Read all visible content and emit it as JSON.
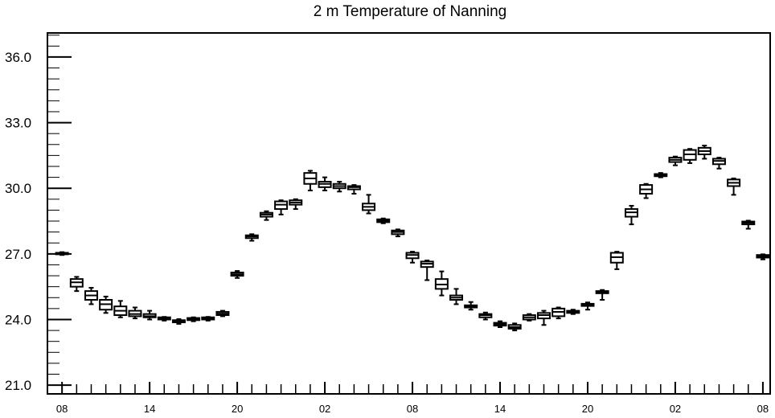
{
  "chart_data": {
    "type": "boxplot",
    "title": "2 m Temperature of Nanning",
    "xlabel": "",
    "ylabel": "",
    "ylim": [
      20.6,
      37.1
    ],
    "xlim": [
      7.0,
      56.5
    ],
    "yticks": [
      {
        "value": 21.0,
        "label": "21.0"
      },
      {
        "value": 24.0,
        "label": "24.0"
      },
      {
        "value": 27.0,
        "label": "27.0"
      },
      {
        "value": 30.0,
        "label": "30.0"
      },
      {
        "value": 33.0,
        "label": "33.0"
      },
      {
        "value": 36.0,
        "label": "36.0"
      }
    ],
    "xticks": [
      {
        "value": 8,
        "label": "08"
      },
      {
        "value": 14,
        "label": "14"
      },
      {
        "value": 20,
        "label": "20"
      },
      {
        "value": 26,
        "label": "02"
      },
      {
        "value": 32,
        "label": "08"
      },
      {
        "value": 38,
        "label": "14"
      },
      {
        "value": 44,
        "label": "20"
      },
      {
        "value": 50,
        "label": "02"
      },
      {
        "value": 56,
        "label": "08"
      }
    ],
    "grid": false,
    "legend": "none",
    "boxes": [
      {
        "x": 8,
        "min": 26.95,
        "q1": 26.98,
        "median": 27.0,
        "q3": 27.05,
        "max": 27.08
      },
      {
        "x": 9,
        "min": 25.3,
        "q1": 25.5,
        "median": 25.7,
        "q3": 25.85,
        "max": 25.95
      },
      {
        "x": 10,
        "min": 24.7,
        "q1": 24.9,
        "median": 25.1,
        "q3": 25.3,
        "max": 25.45
      },
      {
        "x": 11,
        "min": 24.3,
        "q1": 24.45,
        "median": 24.7,
        "q3": 24.9,
        "max": 25.05
      },
      {
        "x": 12,
        "min": 24.1,
        "q1": 24.2,
        "median": 24.4,
        "q3": 24.6,
        "max": 24.85
      },
      {
        "x": 13,
        "min": 24.05,
        "q1": 24.15,
        "median": 24.25,
        "q3": 24.4,
        "max": 24.55
      },
      {
        "x": 14,
        "min": 24.0,
        "q1": 24.1,
        "median": 24.15,
        "q3": 24.25,
        "max": 24.4
      },
      {
        "x": 15,
        "min": 23.95,
        "q1": 24.0,
        "median": 24.05,
        "q3": 24.1,
        "max": 24.12
      },
      {
        "x": 16,
        "min": 23.8,
        "q1": 23.87,
        "median": 23.92,
        "q3": 23.97,
        "max": 24.02
      },
      {
        "x": 17,
        "min": 23.92,
        "q1": 23.97,
        "median": 24.02,
        "q3": 24.07,
        "max": 24.1
      },
      {
        "x": 18,
        "min": 23.95,
        "q1": 24.0,
        "median": 24.05,
        "q3": 24.1,
        "max": 24.12
      },
      {
        "x": 19,
        "min": 24.15,
        "q1": 24.2,
        "median": 24.27,
        "q3": 24.35,
        "max": 24.4
      },
      {
        "x": 20,
        "min": 25.9,
        "q1": 26.0,
        "median": 26.07,
        "q3": 26.15,
        "max": 26.22
      },
      {
        "x": 21,
        "min": 27.6,
        "q1": 27.72,
        "median": 27.8,
        "q3": 27.85,
        "max": 27.9
      },
      {
        "x": 22,
        "min": 28.55,
        "q1": 28.7,
        "median": 28.8,
        "q3": 28.88,
        "max": 28.95
      },
      {
        "x": 23,
        "min": 28.8,
        "q1": 29.05,
        "median": 29.25,
        "q3": 29.4,
        "max": 29.45
      },
      {
        "x": 24,
        "min": 29.05,
        "q1": 29.25,
        "median": 29.35,
        "q3": 29.45,
        "max": 29.5
      },
      {
        "x": 25,
        "min": 29.9,
        "q1": 30.2,
        "median": 30.45,
        "q3": 30.7,
        "max": 30.8
      },
      {
        "x": 26,
        "min": 29.9,
        "q1": 30.05,
        "median": 30.2,
        "q3": 30.3,
        "max": 30.5
      },
      {
        "x": 27,
        "min": 29.85,
        "q1": 30.0,
        "median": 30.1,
        "q3": 30.2,
        "max": 30.3
      },
      {
        "x": 28,
        "min": 29.75,
        "q1": 29.95,
        "median": 30.05,
        "q3": 30.1,
        "max": 30.15
      },
      {
        "x": 29,
        "min": 28.85,
        "q1": 29.0,
        "median": 29.15,
        "q3": 29.3,
        "max": 29.7
      },
      {
        "x": 30,
        "min": 28.4,
        "q1": 28.45,
        "median": 28.52,
        "q3": 28.58,
        "max": 28.62
      },
      {
        "x": 31,
        "min": 27.8,
        "q1": 27.9,
        "median": 28.0,
        "q3": 28.07,
        "max": 28.12
      },
      {
        "x": 32,
        "min": 26.6,
        "q1": 26.8,
        "median": 26.95,
        "q3": 27.05,
        "max": 27.1
      },
      {
        "x": 33,
        "min": 25.8,
        "q1": 26.4,
        "median": 26.55,
        "q3": 26.65,
        "max": 26.7
      },
      {
        "x": 34,
        "min": 25.1,
        "q1": 25.4,
        "median": 25.6,
        "q3": 25.85,
        "max": 26.2
      },
      {
        "x": 35,
        "min": 24.7,
        "q1": 24.9,
        "median": 25.0,
        "q3": 25.1,
        "max": 25.4
      },
      {
        "x": 36,
        "min": 24.45,
        "q1": 24.55,
        "median": 24.6,
        "q3": 24.65,
        "max": 24.8
      },
      {
        "x": 37,
        "min": 24.0,
        "q1": 24.1,
        "median": 24.2,
        "q3": 24.25,
        "max": 24.32
      },
      {
        "x": 38,
        "min": 23.65,
        "q1": 23.72,
        "median": 23.78,
        "q3": 23.85,
        "max": 23.92
      },
      {
        "x": 39,
        "min": 23.5,
        "q1": 23.58,
        "median": 23.65,
        "q3": 23.75,
        "max": 23.82
      },
      {
        "x": 40,
        "min": 23.95,
        "q1": 24.0,
        "median": 24.1,
        "q3": 24.2,
        "max": 24.25
      },
      {
        "x": 41,
        "min": 23.75,
        "q1": 24.05,
        "median": 24.2,
        "q3": 24.3,
        "max": 24.4
      },
      {
        "x": 42,
        "min": 24.05,
        "q1": 24.15,
        "median": 24.35,
        "q3": 24.5,
        "max": 24.55
      },
      {
        "x": 43,
        "min": 24.25,
        "q1": 24.3,
        "median": 24.35,
        "q3": 24.4,
        "max": 24.45
      },
      {
        "x": 44,
        "min": 24.45,
        "q1": 24.62,
        "median": 24.68,
        "q3": 24.72,
        "max": 24.78
      },
      {
        "x": 45,
        "min": 24.9,
        "q1": 25.2,
        "median": 25.25,
        "q3": 25.3,
        "max": 25.35
      },
      {
        "x": 46,
        "min": 26.3,
        "q1": 26.6,
        "median": 26.85,
        "q3": 27.05,
        "max": 27.1
      },
      {
        "x": 47,
        "min": 28.35,
        "q1": 28.7,
        "median": 28.9,
        "q3": 29.05,
        "max": 29.2
      },
      {
        "x": 48,
        "min": 29.55,
        "q1": 29.75,
        "median": 29.95,
        "q3": 30.15,
        "max": 30.2
      },
      {
        "x": 49,
        "min": 30.5,
        "q1": 30.55,
        "median": 30.6,
        "q3": 30.65,
        "max": 30.7
      },
      {
        "x": 50,
        "min": 31.05,
        "q1": 31.2,
        "median": 31.3,
        "q3": 31.4,
        "max": 31.45
      },
      {
        "x": 51,
        "min": 31.15,
        "q1": 31.3,
        "median": 31.55,
        "q3": 31.75,
        "max": 31.8
      },
      {
        "x": 52,
        "min": 31.35,
        "q1": 31.55,
        "median": 31.7,
        "q3": 31.85,
        "max": 31.95
      },
      {
        "x": 53,
        "min": 30.9,
        "q1": 31.1,
        "median": 31.25,
        "q3": 31.35,
        "max": 31.4
      },
      {
        "x": 54,
        "min": 29.7,
        "q1": 30.1,
        "median": 30.25,
        "q3": 30.4,
        "max": 30.45
      },
      {
        "x": 55,
        "min": 28.15,
        "q1": 28.35,
        "median": 28.42,
        "q3": 28.48,
        "max": 28.52
      },
      {
        "x": 56,
        "min": 26.75,
        "q1": 26.83,
        "median": 26.9,
        "q3": 26.95,
        "max": 26.98
      }
    ]
  }
}
